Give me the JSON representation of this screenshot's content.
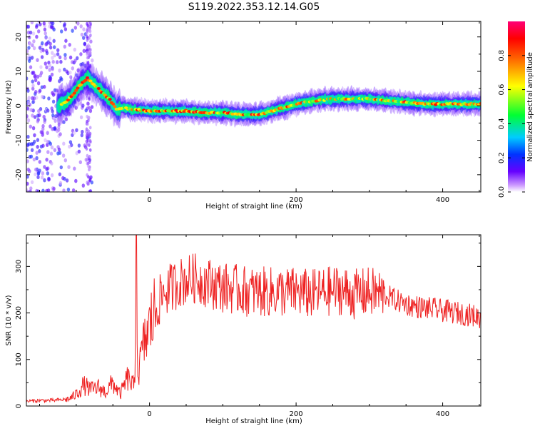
{
  "title": "S119.2022.353.12.14.G05",
  "chart_data": [
    {
      "type": "heatmap",
      "xlabel": "Height of straight line (km)",
      "ylabel": "Frequency (Hz)",
      "xlim": [
        -168,
        452
      ],
      "ylim": [
        -25,
        24.5
      ],
      "xticks": [
        0,
        200,
        400
      ],
      "yticks": [
        -20,
        -10,
        0,
        10,
        20
      ],
      "colorbar": {
        "label": "Normalized spectral amplitude",
        "range": [
          0,
          1
        ],
        "ticks": [
          "0.0",
          "0.2",
          "0.4",
          "0.6",
          "0.8"
        ]
      },
      "ridge": {
        "x": [
          -125,
          -115,
          -105,
          -95,
          -85,
          -75,
          -65,
          -55,
          -45,
          -35,
          -25,
          0,
          25,
          50,
          75,
          100,
          125,
          150,
          175,
          200,
          225,
          250,
          275,
          300,
          325,
          350,
          375,
          400,
          425,
          452
        ],
        "freq": [
          0,
          1,
          3,
          6,
          8,
          6,
          4,
          2,
          -1,
          -0.5,
          -1,
          -1.5,
          -1.5,
          -1.5,
          -2,
          -2,
          -2.5,
          -2.5,
          -1,
          0.5,
          1.5,
          2,
          2,
          2,
          1.5,
          1,
          0.5,
          0.5,
          0.5,
          0.5
        ]
      },
      "colors": {
        "0.0": "#ffffff",
        "0.1": "#bb77ff",
        "0.2": "#3333ff",
        "0.35": "#00ccff",
        "0.5": "#00ff66",
        "0.65": "#ffff00",
        "0.8": "#ff8800",
        "0.95": "#ff0066"
      }
    },
    {
      "type": "line",
      "xlabel": "Height of straight line (km)",
      "ylabel": "SNR (10 * v/v)",
      "xlim": [
        -168,
        452
      ],
      "ylim": [
        0,
        368
      ],
      "xticks": [
        0,
        200,
        400
      ],
      "yticks": [
        0,
        100,
        200,
        300
      ],
      "line_color": "#ee2222",
      "series": [
        {
          "x": [
            -168,
            -150,
            -130,
            -110,
            -100,
            -90,
            -80,
            -70,
            -60,
            -50,
            -40,
            -30,
            -20,
            -18,
            -16,
            -10,
            0,
            10,
            20,
            30,
            40,
            50,
            60,
            70,
            80,
            90,
            100,
            120,
            140,
            160,
            180,
            200,
            220,
            240,
            260,
            280,
            300,
            320,
            340,
            360,
            380,
            400,
            420,
            440,
            452
          ],
          "values": [
            10,
            12,
            12,
            15,
            25,
            45,
            35,
            40,
            30,
            50,
            25,
            60,
            40,
            368,
            60,
            120,
            170,
            215,
            245,
            255,
            265,
            270,
            275,
            270,
            265,
            260,
            255,
            250,
            245,
            245,
            245,
            245,
            240,
            245,
            250,
            240,
            245,
            240,
            225,
            215,
            210,
            205,
            200,
            195,
            190
          ]
        }
      ]
    }
  ]
}
